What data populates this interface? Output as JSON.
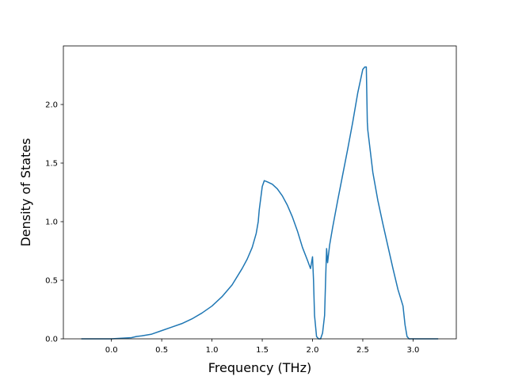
{
  "chart_data": {
    "type": "line",
    "title": "",
    "xlabel": "Frequency (THz)",
    "ylabel": "Density of States",
    "xlim": [
      -0.478,
      3.43
    ],
    "ylim": [
      0.0,
      2.5
    ],
    "xticks": [
      0.0,
      0.5,
      1.0,
      1.5,
      2.0,
      2.5,
      3.0
    ],
    "xtick_labels": [
      "0.0",
      "0.5",
      "1.0",
      "1.5",
      "2.0",
      "2.5",
      "3.0"
    ],
    "yticks": [
      0.0,
      0.5,
      1.0,
      1.5,
      2.0
    ],
    "ytick_labels": [
      "0.0",
      "0.5",
      "1.0",
      "1.5",
      "2.0"
    ],
    "grid": false,
    "legend": false,
    "series": [
      {
        "color": "#1f77b4",
        "x": [
          -0.3,
          0.0,
          0.2,
          0.25,
          0.3,
          0.4,
          0.5,
          0.6,
          0.7,
          0.8,
          0.9,
          1.0,
          1.1,
          1.2,
          1.3,
          1.35,
          1.4,
          1.42,
          1.44,
          1.46,
          1.47,
          1.5,
          1.52,
          1.55,
          1.6,
          1.65,
          1.7,
          1.75,
          1.8,
          1.85,
          1.9,
          1.95,
          1.98,
          2.0,
          2.01,
          2.02,
          2.04,
          2.06,
          2.08,
          2.1,
          2.12,
          2.13,
          2.14,
          2.15,
          2.17,
          2.2,
          2.25,
          2.3,
          2.35,
          2.4,
          2.45,
          2.5,
          2.52,
          2.535,
          2.545,
          2.55,
          2.6,
          2.65,
          2.7,
          2.75,
          2.8,
          2.85,
          2.9,
          2.92,
          2.94,
          2.96,
          3.0,
          3.1,
          3.25
        ],
        "y": [
          0.0,
          0.0,
          0.01,
          0.02,
          0.025,
          0.04,
          0.07,
          0.1,
          0.13,
          0.17,
          0.22,
          0.28,
          0.36,
          0.46,
          0.6,
          0.68,
          0.78,
          0.84,
          0.9,
          1.0,
          1.1,
          1.3,
          1.35,
          1.34,
          1.32,
          1.28,
          1.22,
          1.14,
          1.04,
          0.92,
          0.78,
          0.67,
          0.6,
          0.7,
          0.5,
          0.2,
          0.02,
          0.0,
          0.0,
          0.05,
          0.2,
          0.5,
          0.77,
          0.65,
          0.8,
          0.95,
          1.18,
          1.4,
          1.62,
          1.85,
          2.1,
          2.3,
          2.32,
          2.32,
          1.85,
          1.78,
          1.42,
          1.18,
          0.98,
          0.79,
          0.6,
          0.42,
          0.28,
          0.12,
          0.02,
          0.0,
          0.0,
          0.0,
          0.0
        ]
      }
    ]
  }
}
